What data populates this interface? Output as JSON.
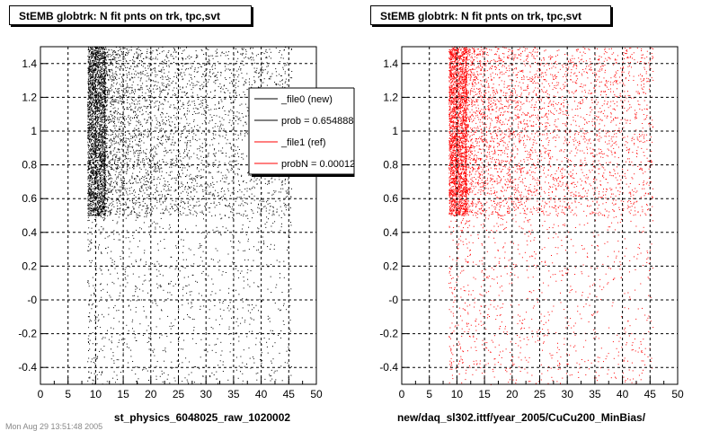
{
  "chart_data": [
    {
      "type": "scatter",
      "title": "StEMB globtrk: N fit pnts on trk, tpc,svt",
      "xlabel": "st_physics_6048025_raw_1020002",
      "ylabel": "",
      "xlim": [
        0,
        50
      ],
      "ylim": [
        -0.5,
        1.5
      ],
      "x_ticks": [
        "0",
        "5",
        "10",
        "15",
        "20",
        "25",
        "30",
        "35",
        "40",
        "45",
        "50"
      ],
      "y_ticks": [
        "-0.4",
        "-0.2",
        "-0",
        "0.2",
        "0.4",
        "0.6",
        "0.8",
        "1",
        "1.2",
        "1.4"
      ],
      "grid": true,
      "series": [
        {
          "color": "#000000",
          "description_points": [
            {
              "x_range": [
                8.5,
                11.5
              ],
              "y_range": [
                0.5,
                1.5
              ],
              "density": "very high"
            },
            {
              "x_range": [
                11.5,
                45
              ],
              "y_range": [
                0.5,
                1.5
              ],
              "density": "medium, decreasing with x"
            },
            {
              "x_range": [
                8.5,
                45
              ],
              "y_range": [
                -0.5,
                0.5
              ],
              "density": "low"
            }
          ]
        }
      ],
      "legend": {
        "placement": "top-right",
        "entries": [
          {
            "label": "_file0 (new)",
            "color": "#000000"
          },
          {
            "label": "prob = 0.654888",
            "color": "#000000"
          },
          {
            "label": "_file1 (ref)",
            "color": "#ff0000"
          },
          {
            "label": "probN = 0.00012",
            "color": "#ff0000"
          }
        ]
      }
    },
    {
      "type": "scatter",
      "title": "StEMB globtrk: N fit pnts on trk, tpc,svt",
      "xlabel": "new/daq_sl302.ittf/year_2005/CuCu200_MinBias/",
      "ylabel": "",
      "xlim": [
        0,
        50
      ],
      "ylim": [
        -0.5,
        1.5
      ],
      "x_ticks": [
        "0",
        "5",
        "10",
        "15",
        "20",
        "25",
        "30",
        "35",
        "40",
        "45",
        "50"
      ],
      "y_ticks": [
        "-0.4",
        "-0.2",
        "-0",
        "0.2",
        "0.4",
        "0.6",
        "0.8",
        "1",
        "1.2",
        "1.4"
      ],
      "grid": true,
      "series": [
        {
          "color": "#ff0000",
          "description_points": [
            {
              "x_range": [
                8.5,
                11.5
              ],
              "y_range": [
                0.5,
                1.5
              ],
              "density": "very high"
            },
            {
              "x_range": [
                11.5,
                45
              ],
              "y_range": [
                0.5,
                1.5
              ],
              "density": "medium, decreasing with x"
            },
            {
              "x_range": [
                8.5,
                45
              ],
              "y_range": [
                -0.5,
                0.5
              ],
              "density": "low"
            }
          ]
        }
      ]
    }
  ],
  "footer": "Mon Aug 29 13:51:48 2005"
}
